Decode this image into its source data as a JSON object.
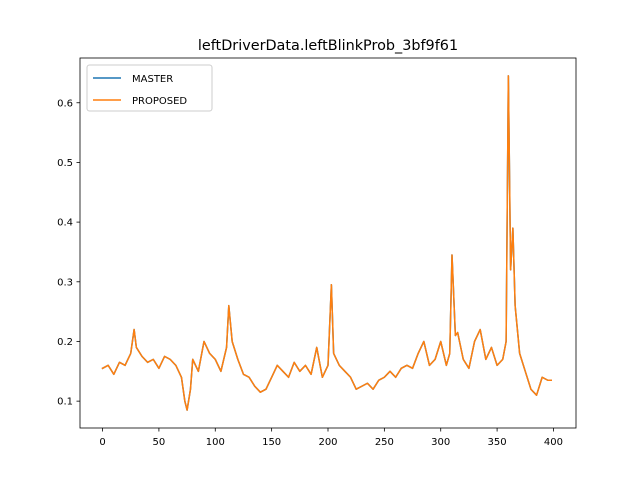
{
  "chart_data": {
    "type": "line",
    "title": "leftDriverData.leftBlinkProb_3bf9f61",
    "xlabel": "",
    "ylabel": "",
    "xlim": [
      -20,
      420
    ],
    "ylim": [
      0.055,
      0.675
    ],
    "xticks": [
      0,
      50,
      100,
      150,
      200,
      250,
      300,
      350,
      400
    ],
    "yticks": [
      0.1,
      0.2,
      0.3,
      0.4,
      0.5,
      0.6
    ],
    "ytick_labels": [
      "0.1",
      "0.2",
      "0.3",
      "0.4",
      "0.5",
      "0.6"
    ],
    "grid": false,
    "legend_location": "upper left",
    "x": [
      0,
      5,
      10,
      15,
      20,
      25,
      28,
      30,
      35,
      40,
      45,
      50,
      55,
      60,
      65,
      70,
      73,
      75,
      78,
      80,
      85,
      90,
      95,
      100,
      105,
      110,
      112,
      115,
      120,
      125,
      130,
      135,
      140,
      145,
      150,
      155,
      160,
      165,
      170,
      175,
      180,
      185,
      190,
      195,
      200,
      203,
      205,
      210,
      215,
      220,
      225,
      230,
      235,
      240,
      245,
      250,
      255,
      260,
      265,
      270,
      275,
      280,
      285,
      290,
      295,
      300,
      305,
      308,
      310,
      313,
      315,
      320,
      325,
      330,
      335,
      340,
      345,
      350,
      355,
      358,
      360,
      362,
      364,
      366,
      370,
      375,
      380,
      385,
      390,
      395,
      398
    ],
    "series": [
      {
        "name": "MASTER",
        "color": "#1f77b4",
        "values": [
          0.155,
          0.16,
          0.145,
          0.165,
          0.16,
          0.18,
          0.22,
          0.19,
          0.175,
          0.165,
          0.17,
          0.155,
          0.175,
          0.17,
          0.16,
          0.14,
          0.1,
          0.085,
          0.12,
          0.17,
          0.15,
          0.2,
          0.18,
          0.17,
          0.15,
          0.19,
          0.26,
          0.2,
          0.17,
          0.145,
          0.14,
          0.125,
          0.115,
          0.12,
          0.14,
          0.16,
          0.15,
          0.14,
          0.165,
          0.15,
          0.16,
          0.145,
          0.19,
          0.14,
          0.16,
          0.295,
          0.18,
          0.16,
          0.15,
          0.14,
          0.12,
          0.125,
          0.13,
          0.12,
          0.135,
          0.14,
          0.15,
          0.14,
          0.155,
          0.16,
          0.155,
          0.18,
          0.2,
          0.16,
          0.17,
          0.2,
          0.16,
          0.18,
          0.345,
          0.21,
          0.215,
          0.17,
          0.155,
          0.2,
          0.22,
          0.17,
          0.19,
          0.16,
          0.17,
          0.2,
          0.645,
          0.32,
          0.39,
          0.26,
          0.18,
          0.15,
          0.12,
          0.11,
          0.14,
          0.135,
          0.135
        ]
      },
      {
        "name": "PROPOSED",
        "color": "#ff7f0e",
        "values": [
          0.155,
          0.16,
          0.145,
          0.165,
          0.16,
          0.18,
          0.22,
          0.19,
          0.175,
          0.165,
          0.17,
          0.155,
          0.175,
          0.17,
          0.16,
          0.14,
          0.1,
          0.085,
          0.12,
          0.17,
          0.15,
          0.2,
          0.18,
          0.17,
          0.15,
          0.19,
          0.26,
          0.2,
          0.17,
          0.145,
          0.14,
          0.125,
          0.115,
          0.12,
          0.14,
          0.16,
          0.15,
          0.14,
          0.165,
          0.15,
          0.16,
          0.145,
          0.19,
          0.14,
          0.16,
          0.295,
          0.18,
          0.16,
          0.15,
          0.14,
          0.12,
          0.125,
          0.13,
          0.12,
          0.135,
          0.14,
          0.15,
          0.14,
          0.155,
          0.16,
          0.155,
          0.18,
          0.2,
          0.16,
          0.17,
          0.2,
          0.16,
          0.18,
          0.345,
          0.21,
          0.215,
          0.17,
          0.155,
          0.2,
          0.22,
          0.17,
          0.19,
          0.16,
          0.17,
          0.2,
          0.645,
          0.32,
          0.39,
          0.26,
          0.18,
          0.15,
          0.12,
          0.11,
          0.14,
          0.135,
          0.135
        ]
      }
    ]
  }
}
